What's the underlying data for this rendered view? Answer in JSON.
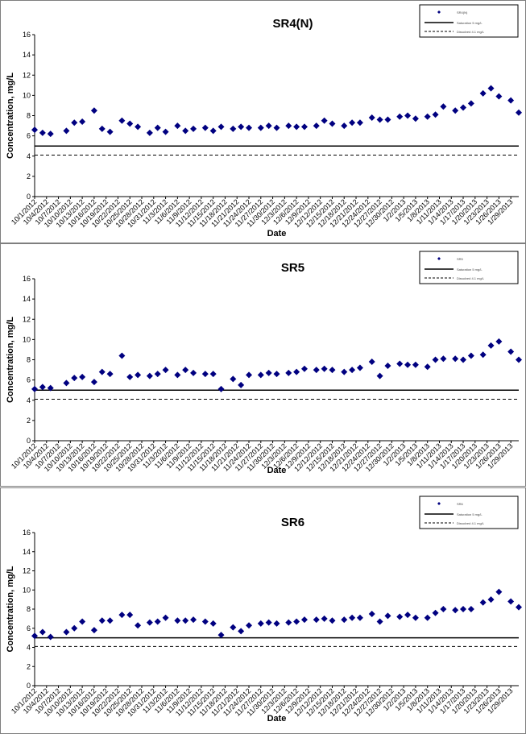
{
  "chart_data": [
    {
      "type": "scatter",
      "title": "SR4(N)",
      "xlabel": "Date",
      "ylabel": "Concentration, mg/L",
      "ylim": [
        0,
        16
      ],
      "yticks": [
        0,
        2,
        4,
        6,
        8,
        10,
        12,
        14,
        16
      ],
      "xticks": [
        "10/1/2012",
        "10/4/2012",
        "10/7/2012",
        "10/10/2012",
        "10/13/2012",
        "10/16/2012",
        "10/19/2012",
        "10/22/2012",
        "10/25/2012",
        "10/28/2012",
        "10/31/2012",
        "11/3/2012",
        "11/6/2012",
        "11/9/2012",
        "11/12/2012",
        "11/15/2012",
        "11/18/2012",
        "11/21/2012",
        "11/24/2012",
        "11/27/2012",
        "11/30/2012",
        "12/3/2012",
        "12/6/2012",
        "12/9/2012",
        "12/12/2012",
        "12/15/2012",
        "12/18/2012",
        "12/21/2012",
        "12/24/2012",
        "12/27/2012",
        "12/30/2012",
        "1/2/2013",
        "1/5/2013",
        "1/8/2013",
        "1/11/2013",
        "1/14/2013",
        "1/17/2013",
        "1/20/2013",
        "1/23/2013",
        "1/26/2013",
        "1/29/2013"
      ],
      "grid": false,
      "legend": {
        "placement": "top-right",
        "entries": [
          "SR4(N)",
          "Saturation 5 mg/L",
          "Dissolved 4.1 mg/L"
        ]
      },
      "series": [
        {
          "name": "SR4(N)",
          "marker": "diamond",
          "color": "#000080",
          "x": [
            "10/1/2012",
            "10/3/2012",
            "10/5/2012",
            "10/9/2012",
            "10/11/2012",
            "10/13/2012",
            "10/16/2012",
            "10/18/2012",
            "10/20/2012",
            "10/23/2012",
            "10/25/2012",
            "10/27/2012",
            "10/30/2012",
            "11/1/2012",
            "11/3/2012",
            "11/6/2012",
            "11/8/2012",
            "11/10/2012",
            "11/13/2012",
            "11/15/2012",
            "11/17/2012",
            "11/20/2012",
            "11/22/2012",
            "11/24/2012",
            "11/27/2012",
            "11/29/2012",
            "12/1/2012",
            "12/4/2012",
            "12/6/2012",
            "12/8/2012",
            "12/11/2012",
            "12/13/2012",
            "12/15/2012",
            "12/18/2012",
            "12/20/2012",
            "12/22/2012",
            "12/25/2012",
            "12/27/2012",
            "12/29/2012",
            "1/1/2013",
            "1/3/2013",
            "1/5/2013",
            "1/8/2013",
            "1/10/2013",
            "1/12/2013",
            "1/15/2013",
            "1/17/2013",
            "1/19/2013",
            "1/22/2013",
            "1/24/2013",
            "1/26/2013",
            "1/29/2013",
            "1/31/2013"
          ],
          "y": [
            6.6,
            6.3,
            6.2,
            6.5,
            7.3,
            7.4,
            8.5,
            6.7,
            6.4,
            7.5,
            7.2,
            6.9,
            6.3,
            6.8,
            6.4,
            7.0,
            6.5,
            6.7,
            6.8,
            6.5,
            6.9,
            6.7,
            6.9,
            6.8,
            6.8,
            7.0,
            6.8,
            7.0,
            6.9,
            6.9,
            7.0,
            7.5,
            7.2,
            7.0,
            7.3,
            7.3,
            7.8,
            7.6,
            7.6,
            7.9,
            8.0,
            7.7,
            7.9,
            8.1,
            8.9,
            8.5,
            8.8,
            9.2,
            10.2,
            10.7,
            9.9,
            9.5,
            8.3
          ]
        }
      ],
      "reference_lines": [
        {
          "label": "Saturation 5 mg/L",
          "value": 5.0,
          "style": "solid"
        },
        {
          "label": "Dissolved 4.1 mg/L",
          "value": 4.1,
          "style": "dashed"
        }
      ]
    },
    {
      "type": "scatter",
      "title": "SR5",
      "xlabel": "Date",
      "ylabel": "Concentration, mg/L",
      "ylim": [
        0,
        16
      ],
      "yticks": [
        0,
        2,
        4,
        6,
        8,
        10,
        12,
        14,
        16
      ],
      "xticks": [
        "10/1/2012",
        "10/4/2012",
        "10/7/2012",
        "10/10/2012",
        "10/13/2012",
        "10/16/2012",
        "10/19/2012",
        "10/22/2012",
        "10/25/2012",
        "10/28/2012",
        "10/31/2012",
        "11/3/2012",
        "11/6/2012",
        "11/9/2012",
        "11/12/2012",
        "11/15/2012",
        "11/18/2012",
        "11/21/2012",
        "11/24/2012",
        "11/27/2012",
        "11/30/2012",
        "12/3/2012",
        "12/6/2012",
        "12/9/2012",
        "12/12/2012",
        "12/15/2012",
        "12/18/2012",
        "12/21/2012",
        "12/24/2012",
        "12/27/2012",
        "12/30/2012",
        "1/2/2013",
        "1/5/2013",
        "1/8/2013",
        "1/11/2013",
        "1/14/2013",
        "1/17/2013",
        "1/20/2013",
        "1/23/2013",
        "1/26/2013",
        "1/29/2013"
      ],
      "grid": false,
      "legend": {
        "placement": "top-right",
        "entries": [
          "SR5",
          "Saturation 5 mg/L",
          "Dissolved 4.1 mg/L"
        ]
      },
      "series": [
        {
          "name": "SR5",
          "marker": "diamond",
          "color": "#000080",
          "x": [
            "10/1/2012",
            "10/3/2012",
            "10/5/2012",
            "10/9/2012",
            "10/11/2012",
            "10/13/2012",
            "10/16/2012",
            "10/18/2012",
            "10/20/2012",
            "10/23/2012",
            "10/25/2012",
            "10/27/2012",
            "10/30/2012",
            "11/1/2012",
            "11/3/2012",
            "11/6/2012",
            "11/8/2012",
            "11/10/2012",
            "11/13/2012",
            "11/15/2012",
            "11/17/2012",
            "11/20/2012",
            "11/22/2012",
            "11/24/2012",
            "11/27/2012",
            "11/29/2012",
            "12/1/2012",
            "12/4/2012",
            "12/6/2012",
            "12/8/2012",
            "12/11/2012",
            "12/13/2012",
            "12/15/2012",
            "12/18/2012",
            "12/20/2012",
            "12/22/2012",
            "12/25/2012",
            "12/27/2012",
            "12/29/2012",
            "1/1/2013",
            "1/3/2013",
            "1/5/2013",
            "1/8/2013",
            "1/10/2013",
            "1/12/2013",
            "1/15/2013",
            "1/17/2013",
            "1/19/2013",
            "1/22/2013",
            "1/24/2013",
            "1/26/2013",
            "1/29/2013",
            "1/31/2013"
          ],
          "y": [
            5.1,
            5.3,
            5.2,
            5.7,
            6.2,
            6.3,
            5.8,
            6.8,
            6.6,
            8.4,
            6.3,
            6.5,
            6.4,
            6.6,
            7.0,
            6.5,
            7.0,
            6.7,
            6.6,
            6.6,
            5.1,
            6.1,
            5.5,
            6.5,
            6.5,
            6.7,
            6.6,
            6.7,
            6.8,
            7.1,
            7.0,
            7.1,
            7.0,
            6.8,
            7.0,
            7.2,
            7.8,
            6.4,
            7.4,
            7.6,
            7.5,
            7.5,
            7.3,
            8.0,
            8.1,
            8.1,
            8.0,
            8.4,
            8.5,
            9.4,
            9.8,
            8.8,
            8.0
          ]
        }
      ],
      "reference_lines": [
        {
          "label": "Saturation 5 mg/L",
          "value": 5.0,
          "style": "solid"
        },
        {
          "label": "Dissolved 4.1 mg/L",
          "value": 4.1,
          "style": "dashed"
        }
      ]
    },
    {
      "type": "scatter",
      "title": "SR6",
      "xlabel": "Date",
      "ylabel": "Concentration, mg/L",
      "ylim": [
        0,
        16
      ],
      "yticks": [
        0,
        2,
        4,
        6,
        8,
        10,
        12,
        14,
        16
      ],
      "xticks": [
        "10/1/2012",
        "10/4/2012",
        "10/7/2012",
        "10/10/2012",
        "10/13/2012",
        "10/16/2012",
        "10/19/2012",
        "10/22/2012",
        "10/25/2012",
        "10/28/2012",
        "10/31/2012",
        "11/3/2012",
        "11/6/2012",
        "11/9/2012",
        "11/12/2012",
        "11/15/2012",
        "11/18/2012",
        "11/21/2012",
        "11/24/2012",
        "11/27/2012",
        "11/30/2012",
        "12/3/2012",
        "12/6/2012",
        "12/9/2012",
        "12/12/2012",
        "12/15/2012",
        "12/18/2012",
        "12/21/2012",
        "12/24/2012",
        "12/27/2012",
        "12/30/2012",
        "1/2/2013",
        "1/5/2013",
        "1/8/2013",
        "1/11/2013",
        "1/14/2013",
        "1/17/2013",
        "1/20/2013",
        "1/23/2013",
        "1/26/2013",
        "1/29/2013"
      ],
      "grid": false,
      "legend": {
        "placement": "top-right",
        "entries": [
          "SR6",
          "Saturation 5 mg/L",
          "Dissolved 4.1 mg/L"
        ]
      },
      "series": [
        {
          "name": "SR6",
          "marker": "diamond",
          "color": "#000080",
          "x": [
            "10/1/2012",
            "10/3/2012",
            "10/5/2012",
            "10/9/2012",
            "10/11/2012",
            "10/13/2012",
            "10/16/2012",
            "10/18/2012",
            "10/20/2012",
            "10/23/2012",
            "10/25/2012",
            "10/27/2012",
            "10/30/2012",
            "11/1/2012",
            "11/3/2012",
            "11/6/2012",
            "11/8/2012",
            "11/10/2012",
            "11/13/2012",
            "11/15/2012",
            "11/17/2012",
            "11/20/2012",
            "11/22/2012",
            "11/24/2012",
            "11/27/2012",
            "11/29/2012",
            "12/1/2012",
            "12/4/2012",
            "12/6/2012",
            "12/8/2012",
            "12/11/2012",
            "12/13/2012",
            "12/15/2012",
            "12/18/2012",
            "12/20/2012",
            "12/22/2012",
            "12/25/2012",
            "12/27/2012",
            "12/29/2012",
            "1/1/2013",
            "1/3/2013",
            "1/5/2013",
            "1/8/2013",
            "1/10/2013",
            "1/12/2013",
            "1/15/2013",
            "1/17/2013",
            "1/19/2013",
            "1/22/2013",
            "1/24/2013",
            "1/26/2013",
            "1/29/2013",
            "1/31/2013"
          ],
          "y": [
            5.2,
            5.6,
            5.1,
            5.6,
            6.0,
            6.7,
            5.8,
            6.8,
            6.8,
            7.4,
            7.4,
            6.3,
            6.6,
            6.7,
            7.1,
            6.8,
            6.8,
            6.9,
            6.7,
            6.5,
            5.3,
            6.1,
            5.7,
            6.3,
            6.5,
            6.6,
            6.5,
            6.6,
            6.7,
            6.9,
            6.9,
            7.0,
            6.8,
            6.9,
            7.1,
            7.1,
            7.5,
            6.7,
            7.3,
            7.2,
            7.4,
            7.1,
            7.1,
            7.6,
            8.0,
            7.9,
            8.0,
            8.0,
            8.7,
            9.0,
            9.8,
            8.8,
            8.2
          ]
        }
      ],
      "reference_lines": [
        {
          "label": "Saturation 5 mg/L",
          "value": 5.0,
          "style": "solid"
        },
        {
          "label": "Dissolved 4.1 mg/L",
          "value": 4.1,
          "style": "dashed"
        }
      ]
    }
  ]
}
